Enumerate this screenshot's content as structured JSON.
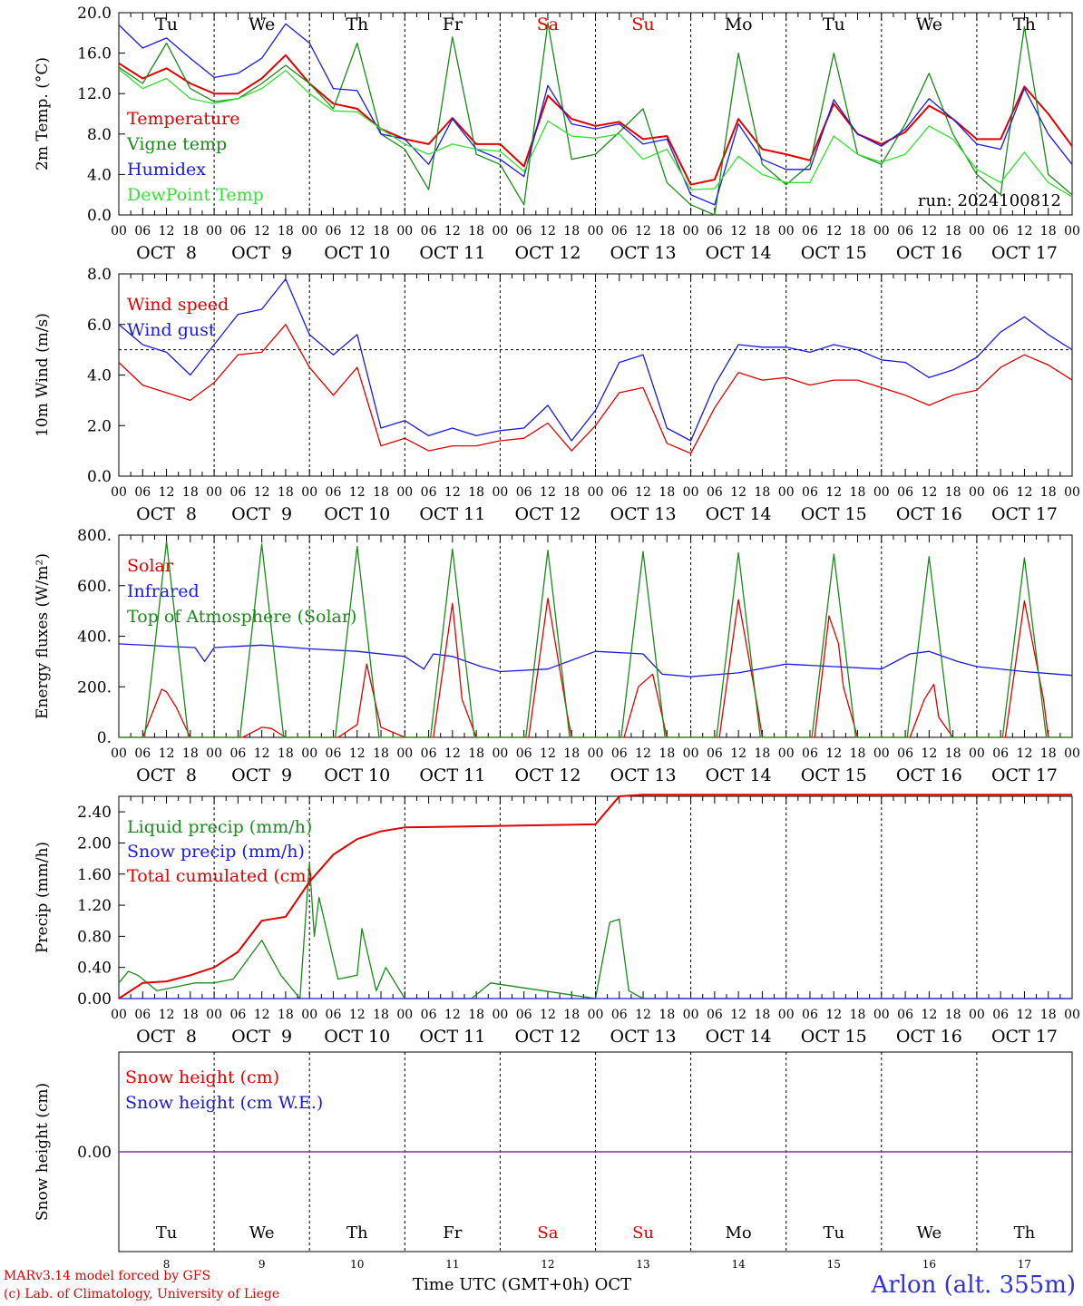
{
  "days": [
    "Tu",
    "We",
    "Th",
    "Fr",
    "Sa",
    "Su",
    "Mo",
    "Tu",
    "We",
    "Th"
  ],
  "day_colors": [
    "#000",
    "#000",
    "#000",
    "#000",
    "#e00000",
    "#e00000",
    "#000",
    "#000",
    "#000",
    "#000"
  ],
  "dates": [
    "OCT  8",
    "OCT  9",
    "OCT 10",
    "OCT 11",
    "OCT 12",
    "OCT 13",
    "OCT 14",
    "OCT 15",
    "OCT 16",
    "OCT 17"
  ],
  "day_numbers": [
    "8",
    "9",
    "10",
    "11",
    "12",
    "13",
    "14",
    "15",
    "16",
    "17"
  ],
  "hour_ticks": [
    "00",
    "06",
    "12",
    "18"
  ],
  "last_tick": "00",
  "run_label": "run: 2024100812",
  "footer": {
    "line1": "MARv3.14 model forced by GFS",
    "line2": "(c) Lab. of Climatology, University of Liege",
    "time_label": "Time UTC (GMT+0h) OCT",
    "station": "Arlon (alt. 355m)"
  },
  "chart_data": [
    {
      "type": "line",
      "ylabel": "2m Temp. (°C)",
      "ylim": [
        0,
        20
      ],
      "yticks": [
        "0.0",
        "4.0",
        "8.0",
        "12.0",
        "16.0",
        "20.0"
      ],
      "x_unit": "days since OCT 8 00 UTC",
      "x_range": [
        0,
        10
      ],
      "legend_placement": "left",
      "series": [
        {
          "name": "Temperature",
          "color": "#e00000",
          "x": [
            0,
            0.25,
            0.5,
            0.75,
            1,
            1.25,
            1.5,
            1.75,
            2,
            2.25,
            2.5,
            2.75,
            3,
            3.25,
            3.5,
            3.75,
            4,
            4.25,
            4.5,
            4.75,
            5,
            5.25,
            5.5,
            5.75,
            6,
            6.25,
            6.5,
            6.75,
            7,
            7.25,
            7.5,
            7.75,
            8,
            8.25,
            8.5,
            8.75,
            9,
            9.25,
            9.5,
            9.75,
            10
          ],
          "values": [
            15,
            13.5,
            14.5,
            13,
            12,
            12,
            13.5,
            15.8,
            13,
            11,
            10.5,
            8.5,
            7.5,
            7,
            9.6,
            7,
            7,
            4.8,
            11.8,
            9.5,
            8.8,
            9.2,
            7.5,
            7.8,
            3,
            3.5,
            9.5,
            6.5,
            6,
            5.4,
            11,
            8,
            7,
            8.2,
            10.8,
            9.5,
            7.5,
            7.5,
            12.7,
            10,
            6.8
          ]
        },
        {
          "name": "Vigne temp",
          "color": "#1a8a1a",
          "x": [
            0,
            0.25,
            0.5,
            0.75,
            1,
            1.25,
            1.5,
            1.75,
            2,
            2.25,
            2.5,
            2.75,
            3,
            3.25,
            3.5,
            3.75,
            4,
            4.25,
            4.5,
            4.75,
            5,
            5.25,
            5.5,
            5.75,
            6,
            6.25,
            6.5,
            6.75,
            7,
            7.25,
            7.5,
            7.75,
            8,
            8.25,
            8.5,
            8.75,
            9,
            9.25,
            9.5,
            9.75,
            10
          ],
          "values": [
            14.6,
            13,
            17,
            12.5,
            11.2,
            11.5,
            13,
            14.8,
            13,
            10.5,
            17,
            8,
            6.5,
            2.5,
            17.6,
            6,
            5,
            1,
            19,
            5.5,
            6,
            8.2,
            10.5,
            3.2,
            1,
            0,
            16,
            5,
            3,
            5,
            16,
            6,
            5,
            9,
            14,
            8,
            4,
            2,
            18.6,
            4,
            2
          ]
        },
        {
          "name": "Humidex",
          "color": "#1a1ae0",
          "x": [
            0,
            0.25,
            0.5,
            0.75,
            1,
            1.25,
            1.5,
            1.75,
            2,
            2.25,
            2.5,
            2.75,
            3,
            3.25,
            3.5,
            3.75,
            4,
            4.25,
            4.5,
            4.75,
            5,
            5.25,
            5.5,
            5.75,
            6,
            6.25,
            6.5,
            6.75,
            7,
            7.25,
            7.5,
            7.75,
            8,
            8.25,
            8.5,
            8.75,
            9,
            9.25,
            9.5,
            9.75,
            10
          ],
          "values": [
            18.8,
            16.5,
            17.5,
            15.5,
            13.6,
            14,
            15.5,
            18.9,
            17,
            12.5,
            12.3,
            8,
            7.5,
            5,
            9.5,
            6.5,
            5.5,
            3.8,
            12.8,
            9,
            8.5,
            9,
            7,
            7.5,
            2,
            1,
            9,
            5.5,
            4.5,
            4.5,
            11.4,
            8,
            6.8,
            8.5,
            11.5,
            9.5,
            7,
            6.5,
            12.5,
            8,
            5
          ]
        },
        {
          "name": "DewPoint Temp",
          "color": "#33e033",
          "x": [
            0,
            0.25,
            0.5,
            0.75,
            1,
            1.25,
            1.5,
            1.75,
            2,
            2.25,
            2.5,
            2.75,
            3,
            3.25,
            3.5,
            3.75,
            4,
            4.25,
            4.5,
            4.75,
            5,
            5.25,
            5.5,
            5.75,
            6,
            6.25,
            6.5,
            6.75,
            7,
            7.25,
            7.5,
            7.75,
            8,
            8.25,
            8.5,
            8.75,
            9,
            9.25,
            9.5,
            9.75,
            10
          ],
          "values": [
            14.4,
            12.5,
            13.5,
            11.5,
            11,
            11.5,
            12.5,
            14.3,
            12,
            10.3,
            10.2,
            8.5,
            7,
            6,
            7,
            6.5,
            6.3,
            4.3,
            9.3,
            7.8,
            7.6,
            8,
            5.5,
            6.5,
            2.5,
            2.6,
            5.8,
            4,
            3.2,
            3.2,
            7.8,
            6,
            5.2,
            6,
            8.8,
            7.5,
            4.5,
            3.2,
            6.2,
            3.2,
            1.8
          ]
        }
      ]
    },
    {
      "type": "line",
      "ylabel": "10m Wind (m/s)",
      "ylim": [
        0,
        8
      ],
      "yticks": [
        "0.0",
        "2.0",
        "4.0",
        "6.0",
        "8.0"
      ],
      "reference_line": 5,
      "series": [
        {
          "name": "Wind speed",
          "color": "#e00000",
          "x": [
            0,
            0.25,
            0.5,
            0.75,
            1,
            1.25,
            1.5,
            1.75,
            2,
            2.25,
            2.5,
            2.75,
            3,
            3.25,
            3.5,
            3.75,
            4,
            4.25,
            4.5,
            4.75,
            5,
            5.25,
            5.5,
            5.75,
            6,
            6.25,
            6.5,
            6.75,
            7,
            7.25,
            7.5,
            7.75,
            8,
            8.25,
            8.5,
            8.75,
            9,
            9.25,
            9.5,
            9.75,
            10
          ],
          "values": [
            4.5,
            3.6,
            3.3,
            3,
            3.7,
            4.8,
            4.9,
            6,
            4.3,
            3.2,
            4.3,
            1.2,
            1.5,
            1,
            1.2,
            1.2,
            1.4,
            1.5,
            2.1,
            1,
            2,
            3.3,
            3.5,
            1.3,
            0.9,
            2.7,
            4.1,
            3.8,
            3.9,
            3.6,
            3.8,
            3.8,
            3.5,
            3.2,
            2.8,
            3.2,
            3.4,
            4.3,
            4.8,
            4.4,
            3.8
          ]
        },
        {
          "name": "Wind gust",
          "color": "#1a1ae0",
          "x": [
            0,
            0.25,
            0.5,
            0.75,
            1,
            1.25,
            1.5,
            1.75,
            2,
            2.25,
            2.5,
            2.75,
            3,
            3.25,
            3.5,
            3.75,
            4,
            4.25,
            4.5,
            4.75,
            5,
            5.25,
            5.5,
            5.75,
            6,
            6.25,
            6.5,
            6.75,
            7,
            7.25,
            7.5,
            7.75,
            8,
            8.25,
            8.5,
            8.75,
            9,
            9.25,
            9.5,
            9.75,
            10
          ],
          "values": [
            6,
            5.2,
            4.9,
            4,
            5.2,
            6.4,
            6.6,
            7.8,
            5.6,
            4.8,
            5.6,
            1.9,
            2.2,
            1.6,
            1.9,
            1.6,
            1.8,
            1.9,
            2.8,
            1.4,
            2.6,
            4.5,
            4.8,
            1.9,
            1.4,
            3.6,
            5.2,
            5.1,
            5.1,
            4.9,
            5.2,
            5,
            4.6,
            4.5,
            3.9,
            4.2,
            4.7,
            5.7,
            6.3,
            5.6,
            5
          ]
        }
      ]
    },
    {
      "type": "line",
      "ylabel": "Energy fluxes (W/m²)",
      "ylim": [
        0,
        800
      ],
      "yticks": [
        "0.",
        "200.",
        "400.",
        "600.",
        "800."
      ],
      "series": [
        {
          "name": "Solar",
          "color": "#e00000",
          "x": [
            0,
            0.25,
            0.45,
            0.5,
            0.6,
            0.75,
            1,
            1.3,
            1.5,
            1.6,
            1.75,
            2,
            2.3,
            2.5,
            2.6,
            2.75,
            3,
            3.3,
            3.45,
            3.5,
            3.6,
            3.75,
            4,
            4.3,
            4.5,
            4.7,
            4.75,
            5,
            5.3,
            5.45,
            5.6,
            5.75,
            6,
            6.3,
            6.5,
            6.7,
            6.75,
            7,
            7.3,
            7.45,
            7.55,
            7.6,
            7.75,
            8,
            8.3,
            8.45,
            8.55,
            8.6,
            8.75,
            9,
            9.3,
            9.5,
            9.7,
            9.75,
            10
          ],
          "values": [
            0,
            0,
            190,
            180,
            120,
            0,
            0,
            0,
            40,
            35,
            0,
            0,
            0,
            50,
            290,
            40,
            0,
            0,
            400,
            530,
            150,
            0,
            0,
            0,
            550,
            100,
            0,
            0,
            0,
            200,
            250,
            0,
            0,
            0,
            545,
            120,
            0,
            0,
            0,
            480,
            370,
            200,
            0,
            0,
            0,
            150,
            210,
            80,
            0,
            0,
            0,
            540,
            150,
            0,
            0
          ]
        },
        {
          "name": "Infrared",
          "color": "#1a1ae0",
          "x": [
            0,
            0.5,
            0.8,
            0.9,
            1,
            1.5,
            2,
            2.5,
            3,
            3.2,
            3.3,
            3.5,
            3.8,
            4,
            4.5,
            5,
            5.5,
            5.7,
            6,
            6.5,
            7,
            7.5,
            8,
            8.3,
            8.5,
            8.8,
            9,
            9.5,
            10
          ],
          "values": [
            370,
            360,
            355,
            300,
            355,
            365,
            350,
            340,
            320,
            270,
            330,
            320,
            280,
            260,
            270,
            340,
            330,
            250,
            240,
            255,
            290,
            280,
            270,
            330,
            340,
            300,
            280,
            260,
            245
          ]
        },
        {
          "name": "Top of Atmosphere (Solar)",
          "color": "#1a8a1a",
          "x": [
            0,
            0.27,
            0.5,
            0.73,
            1,
            1.27,
            1.5,
            1.73,
            2,
            2.27,
            2.5,
            2.73,
            3,
            3.27,
            3.5,
            3.73,
            4,
            4.27,
            4.5,
            4.73,
            5,
            5.27,
            5.5,
            5.73,
            6,
            6.27,
            6.5,
            6.73,
            7,
            7.27,
            7.5,
            7.73,
            8,
            8.27,
            8.5,
            8.73,
            9,
            9.27,
            9.5,
            9.73,
            10
          ],
          "values": [
            0,
            0,
            775,
            0,
            0,
            0,
            765,
            0,
            0,
            0,
            755,
            0,
            0,
            0,
            745,
            0,
            0,
            0,
            740,
            0,
            0,
            0,
            735,
            0,
            0,
            0,
            730,
            0,
            0,
            0,
            725,
            0,
            0,
            0,
            715,
            0,
            0,
            0,
            710,
            0,
            0
          ]
        }
      ]
    },
    {
      "type": "line",
      "ylabel": "Precip (mm/h)",
      "ylim": [
        0,
        2.6
      ],
      "yticks": [
        "0.00",
        "0.40",
        "0.80",
        "1.20",
        "1.60",
        "2.00",
        "2.40"
      ],
      "series": [
        {
          "name": "Liquid precip (mm/h)",
          "color": "#1a8a1a",
          "x": [
            0,
            0.1,
            0.2,
            0.4,
            0.6,
            0.8,
            1,
            1.2,
            1.5,
            1.7,
            1.9,
            2,
            2.05,
            2.1,
            2.3,
            2.5,
            2.55,
            2.7,
            2.8,
            3,
            3.5,
            3.7,
            3.9,
            5,
            5.15,
            5.25,
            5.35,
            5.5,
            6,
            10
          ],
          "values": [
            0.2,
            0.35,
            0.3,
            0.1,
            0.15,
            0.2,
            0.2,
            0.25,
            0.75,
            0.3,
            0,
            1.75,
            0.8,
            1.3,
            0.25,
            0.3,
            0.9,
            0.1,
            0.4,
            0,
            0,
            0,
            0.2,
            0,
            0.98,
            1.02,
            0.1,
            0,
            0,
            0
          ]
        },
        {
          "name": "Snow precip (mm/h)",
          "color": "#1a1ae0",
          "x": [
            0,
            10
          ],
          "values": [
            0,
            0
          ]
        },
        {
          "name": "Total cumulated (cm)",
          "color": "#e00000",
          "x": [
            0,
            0.25,
            0.5,
            0.75,
            1,
            1.25,
            1.5,
            1.75,
            2,
            2.25,
            2.5,
            2.75,
            3,
            3.5,
            4,
            4.5,
            5,
            5.25,
            5.5,
            6,
            7,
            8,
            9,
            10
          ],
          "values": [
            0,
            0.2,
            0.22,
            0.3,
            0.4,
            0.6,
            1.0,
            1.05,
            1.5,
            1.85,
            2.05,
            2.15,
            2.2,
            2.21,
            2.22,
            2.23,
            2.24,
            2.6,
            2.62,
            2.62,
            2.62,
            2.62,
            2.62,
            2.62
          ]
        }
      ]
    },
    {
      "type": "line",
      "ylabel": "Snow height (cm)",
      "yticks": [
        "0.00"
      ],
      "series": [
        {
          "name": "Snow height (cm)",
          "color": "#e00000",
          "x": [
            0,
            10
          ],
          "values": [
            0,
            0
          ]
        },
        {
          "name": "Snow height (cm W.E.)",
          "color": "#1a1ae0",
          "x": [
            0,
            10
          ],
          "values": [
            0,
            0
          ]
        }
      ]
    }
  ]
}
